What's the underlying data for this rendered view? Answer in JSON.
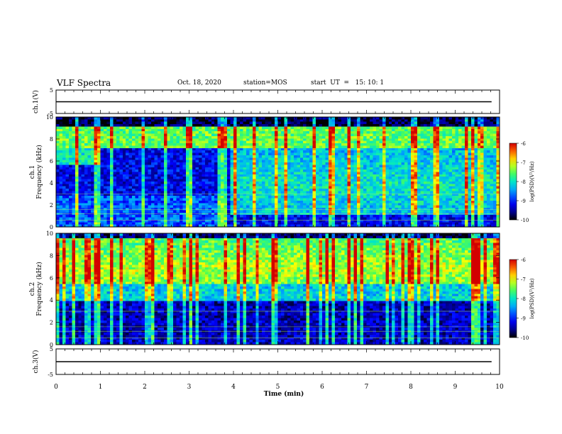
{
  "header": {
    "title": "VLF Spectra",
    "date": "Oct. 18, 2020",
    "station": "station=MOS",
    "start": "start  UT  =   15: 10: 1"
  },
  "chart_data": [
    {
      "type": "line",
      "name": "ch.1",
      "ylabel": "ch.1(V)",
      "ylim": [
        -5,
        5
      ],
      "yticks": [
        5,
        -5
      ],
      "series": [
        {
          "x": [
            0,
            9.82
          ],
          "y": [
            0,
            0
          ]
        }
      ]
    },
    {
      "type": "heatmap",
      "name": "ch.1 spectrogram",
      "ylabel": "ch.1\nFrequency (kHz)",
      "ylim": [
        0,
        10
      ],
      "yticks": [
        0,
        2,
        4,
        6,
        8,
        10
      ],
      "xlim": [
        0,
        9.82
      ],
      "colorbar": {
        "label": "log(PSD)(V²/Hz)",
        "range": [
          -10,
          -6
        ],
        "ticks": [
          -6,
          -7,
          -8,
          -9,
          -10
        ]
      }
    },
    {
      "type": "heatmap",
      "name": "ch.2 spectrogram",
      "ylabel": "ch.2\nFrequency (kHz)",
      "ylim": [
        0,
        10
      ],
      "yticks": [
        0,
        2,
        4,
        6,
        8,
        10
      ],
      "xlim": [
        0,
        9.82
      ],
      "colorbar": {
        "label": "log(PSD)(V²/Hz)",
        "range": [
          -10,
          -6
        ],
        "ticks": [
          -6,
          -7,
          -8,
          -9,
          -10
        ]
      }
    },
    {
      "type": "line",
      "name": "ch.3",
      "ylabel": "ch.3(V)",
      "ylim": [
        -5,
        5
      ],
      "yticks": [
        5,
        -5
      ],
      "xlabel": "Time  (min)",
      "xlim": [
        0,
        10
      ],
      "xticks": [
        0,
        1,
        2,
        3,
        4,
        5,
        6,
        7,
        8,
        9,
        10
      ],
      "series": [
        {
          "x": [
            0,
            9.82
          ],
          "y": [
            0,
            0
          ]
        }
      ]
    }
  ]
}
